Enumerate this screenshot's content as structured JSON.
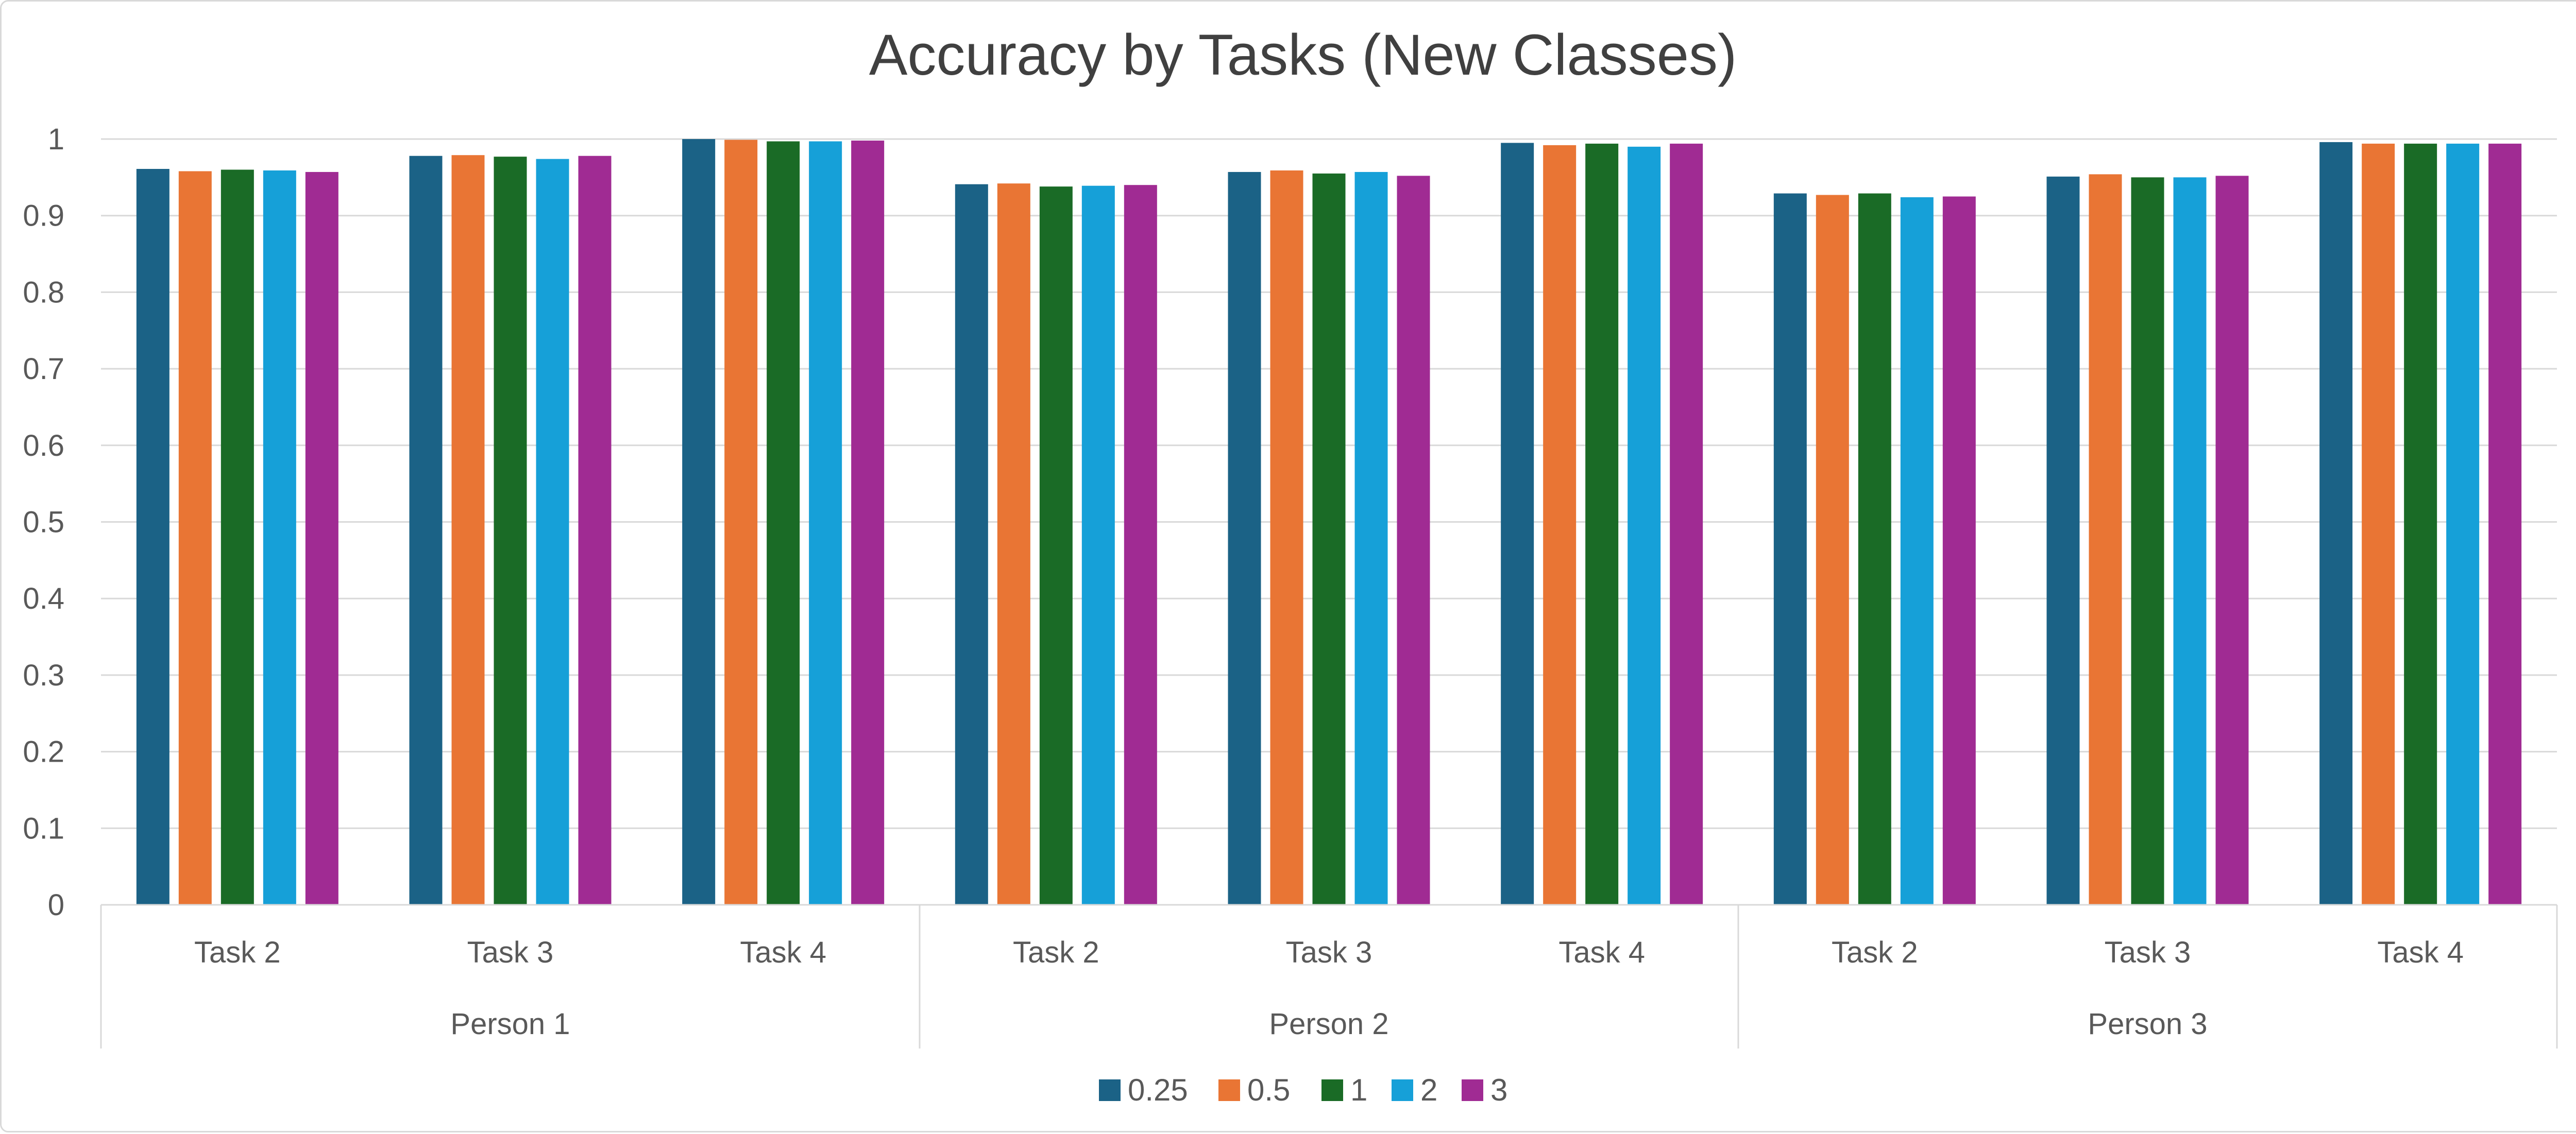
{
  "chart_data": {
    "type": "bar",
    "title": "Accuracy by Tasks (New Classes)",
    "xlabel": "",
    "ylabel": "",
    "ylim": [
      0,
      1
    ],
    "yticks": [
      "0",
      "0.1",
      "0.2",
      "0.3",
      "0.4",
      "0.5",
      "0.6",
      "0.7",
      "0.8",
      "0.9",
      "1"
    ],
    "grid": "horizontal",
    "legend_position": "bottom",
    "groups": [
      {
        "label": "Person 1",
        "categories": [
          "Task 2",
          "Task 3",
          "Task 4"
        ]
      },
      {
        "label": "Person 2",
        "categories": [
          "Task 2",
          "Task 3",
          "Task 4"
        ]
      },
      {
        "label": "Person 3",
        "categories": [
          "Task 2",
          "Task 3",
          "Task 4"
        ]
      }
    ],
    "categories": [
      "Task 2",
      "Task 3",
      "Task 4",
      "Task 2",
      "Task 3",
      "Task 4",
      "Task 2",
      "Task 3",
      "Task 4"
    ],
    "series": [
      {
        "name": "0.25",
        "color": "#1b6286",
        "values": [
          0.961,
          0.978,
          1.0,
          0.941,
          0.957,
          0.995,
          0.929,
          0.951,
          0.996
        ]
      },
      {
        "name": "0.5",
        "color": "#e97534",
        "values": [
          0.958,
          0.979,
          0.999,
          0.942,
          0.959,
          0.992,
          0.927,
          0.954,
          0.994
        ]
      },
      {
        "name": "1",
        "color": "#1a6b26",
        "values": [
          0.96,
          0.977,
          0.997,
          0.938,
          0.955,
          0.994,
          0.929,
          0.95,
          0.994
        ]
      },
      {
        "name": "2",
        "color": "#16a0d8",
        "values": [
          0.959,
          0.974,
          0.997,
          0.939,
          0.957,
          0.99,
          0.924,
          0.95,
          0.994
        ]
      },
      {
        "name": "3",
        "color": "#a02b93",
        "values": [
          0.957,
          0.978,
          0.998,
          0.94,
          0.952,
          0.994,
          0.925,
          0.952,
          0.994
        ]
      }
    ]
  }
}
